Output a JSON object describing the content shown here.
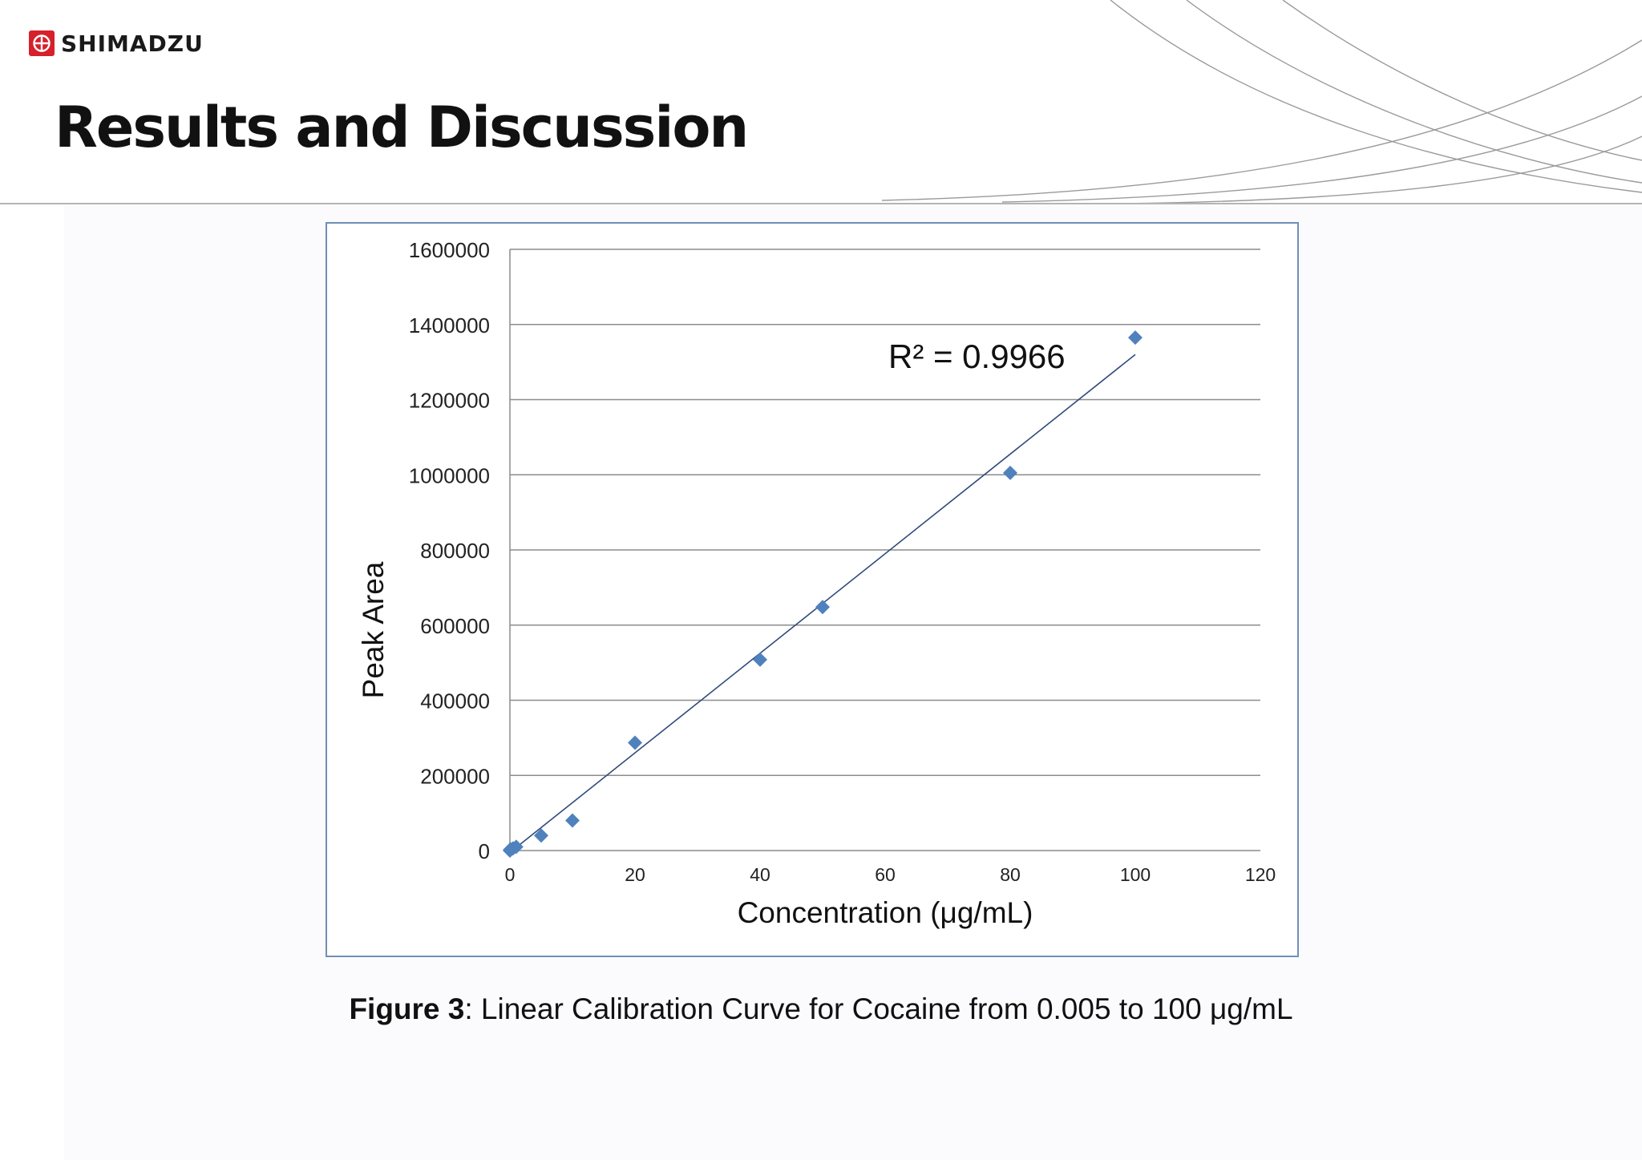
{
  "header": {
    "logo_text": "SHIMADZU",
    "title": "Results and Discussion"
  },
  "colors": {
    "brand_red": "#d6202a",
    "marker": "#4f81bd",
    "trendline": "#2f4a7a",
    "frame": "#6f8fb7",
    "grid": "#8c8c8c"
  },
  "chart_data": {
    "type": "scatter",
    "xlabel": "Concentration (μg/mL)",
    "ylabel": "Peak Area",
    "xlim": [
      0,
      120
    ],
    "ylim": [
      0,
      1600000
    ],
    "x_ticks": [
      0,
      20,
      40,
      60,
      80,
      100,
      120
    ],
    "y_ticks": [
      0,
      200000,
      400000,
      600000,
      800000,
      1000000,
      1200000,
      1400000,
      1600000
    ],
    "grid": "horizontal",
    "marker": "diamond",
    "points": [
      {
        "x": 0.005,
        "y": 0
      },
      {
        "x": 0.01,
        "y": 500
      },
      {
        "x": 0.05,
        "y": 2000
      },
      {
        "x": 0.1,
        "y": 3500
      },
      {
        "x": 0.5,
        "y": 6000
      },
      {
        "x": 1,
        "y": 10000
      },
      {
        "x": 5,
        "y": 40000
      },
      {
        "x": 10,
        "y": 80000
      },
      {
        "x": 20,
        "y": 287000
      },
      {
        "x": 40,
        "y": 508000
      },
      {
        "x": 50,
        "y": 648000
      },
      {
        "x": 80,
        "y": 1005000
      },
      {
        "x": 100,
        "y": 1365000
      }
    ],
    "trendline": {
      "x": [
        0,
        100
      ],
      "y": [
        -5000,
        1320000
      ]
    },
    "annotation": "R² = 0.9966"
  },
  "caption": {
    "label": "Figure 3",
    "text": ": Linear Calibration Curve for Cocaine from 0.005 to 100 μg/mL"
  }
}
